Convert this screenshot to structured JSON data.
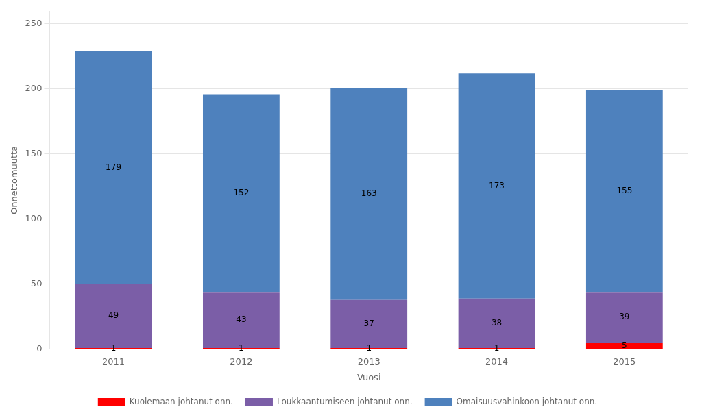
{
  "chart_data": {
    "type": "bar",
    "stacked": true,
    "categories": [
      "2011",
      "2012",
      "2013",
      "2014",
      "2015"
    ],
    "series": [
      {
        "name": "Kuolemaan johtanut onn.",
        "color": "#FF0000",
        "values": [
          1,
          1,
          1,
          1,
          5
        ]
      },
      {
        "name": "Loukkaantumiseen johtanut onn.",
        "color": "#7B5EA7",
        "values": [
          49,
          43,
          37,
          38,
          39
        ]
      },
      {
        "name": "Omaisuusvahinkoon johtanut onn.",
        "color": "#4E81BD",
        "values": [
          179,
          152,
          163,
          173,
          155
        ]
      }
    ],
    "xlabel": "Vuosi",
    "ylabel": "Onnettomuutta",
    "ylim": [
      0,
      260
    ],
    "yticks": [
      0,
      50,
      100,
      150,
      200,
      250
    ],
    "grid": true,
    "legend": "bottom",
    "data_labels": true
  }
}
